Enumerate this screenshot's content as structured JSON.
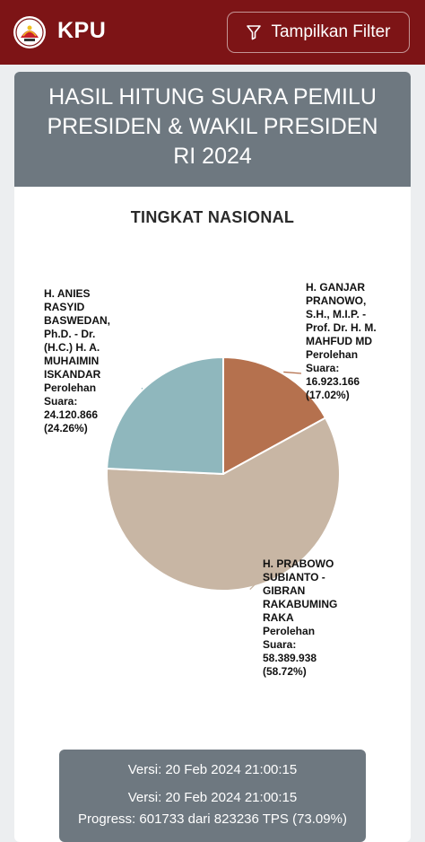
{
  "header": {
    "brand": "KPU",
    "filter_label": "Tampilkan Filter"
  },
  "card": {
    "title_lines": [
      "HASIL HITUNG SUARA PEMILU",
      "PRESIDEN & WAKIL PRESIDEN",
      "RI 2024"
    ],
    "level": "TINGKAT NASIONAL"
  },
  "chart_data": {
    "type": "pie",
    "title": "TINGKAT NASIONAL",
    "slices": [
      {
        "name": "H. ANIES RASYID BASWEDAN, Ph.D. - Dr. (H.C.) H. A. MUHAIMIN ISKANDAR",
        "votes": "24.120.866",
        "percent": 24.26,
        "color": "#8fb7bd",
        "label_lines": [
          "H. ANIES",
          "RASYID",
          "BASWEDAN,",
          "Ph.D. - Dr.",
          "(H.C.) H. A.",
          "MUHAIMIN",
          "ISKANDAR",
          "Perolehan",
          "Suara:",
          "24.120.866",
          "(24.26%)"
        ]
      },
      {
        "name": "H. PRABOWO SUBIANTO - GIBRAN RAKABUMING RAKA",
        "votes": "58.389.938",
        "percent": 58.72,
        "color": "#c8b6a4",
        "label_lines": [
          "H. PRABOWO",
          "SUBIANTO -",
          "GIBRAN",
          "RAKABUMING",
          "RAKA",
          "Perolehan",
          "Suara:",
          "58.389.938",
          "(58.72%)"
        ]
      },
      {
        "name": "H. GANJAR PRANOWO, S.H., M.I.P. - Prof. Dr. H. M. MAHFUD MD",
        "votes": "16.923.166",
        "percent": 17.02,
        "color": "#b5714e",
        "label_lines": [
          "H. GANJAR",
          "PRANOWO,",
          "S.H., M.I.P. -",
          "Prof. Dr. H. M.",
          "MAHFUD MD",
          "Perolehan",
          "Suara:",
          "16.923.166",
          "(17.02%)"
        ]
      }
    ]
  },
  "footer": {
    "version_1": "Versi: 20 Feb 2024 21:00:15",
    "version_2": "Versi: 20 Feb 2024 21:00:15",
    "progress": "Progress: 601733 dari 823236 TPS (73.09%)"
  }
}
